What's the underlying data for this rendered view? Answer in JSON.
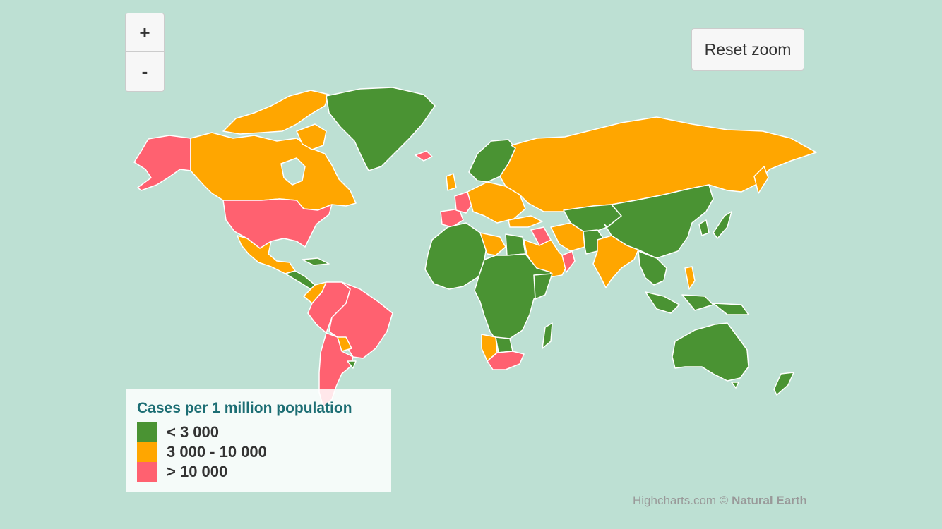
{
  "zoom": {
    "in_label": "+",
    "out_label": "-"
  },
  "reset_zoom_label": "Reset zoom",
  "legend": {
    "title": "Cases per 1 million population",
    "items": [
      {
        "label": "< 3 000",
        "color": "#4a9333"
      },
      {
        "label": "3 000 - 10 000",
        "color": "#ffa600"
      },
      {
        "label": "> 10 000",
        "color": "#ff6170"
      }
    ]
  },
  "credits": {
    "prefix": "Highcharts.com © ",
    "source": "Natural Earth"
  },
  "colors": {
    "background": "#bde0d3",
    "border": "#ffffff"
  },
  "regions": [
    {
      "name": "Alaska",
      "class": "> 10 000"
    },
    {
      "name": "Canada",
      "class": "3 000 - 10 000"
    },
    {
      "name": "Greenland",
      "class": "< 3 000"
    },
    {
      "name": "United States",
      "class": "> 10 000"
    },
    {
      "name": "Mexico",
      "class": "3 000 - 10 000"
    },
    {
      "name": "Brazil",
      "class": "> 10 000"
    },
    {
      "name": "Argentina",
      "class": "> 10 000"
    },
    {
      "name": "Russia",
      "class": "3 000 - 10 000"
    },
    {
      "name": "China",
      "class": "< 3 000"
    },
    {
      "name": "India",
      "class": "3 000 - 10 000"
    },
    {
      "name": "Australia",
      "class": "< 3 000"
    },
    {
      "name": "Africa",
      "class": "< 3 000"
    },
    {
      "name": "South Africa",
      "class": "> 10 000"
    },
    {
      "name": "France",
      "class": "> 10 000"
    },
    {
      "name": "Spain",
      "class": "> 10 000"
    },
    {
      "name": "Saudi Arabia",
      "class": "3 000 - 10 000"
    },
    {
      "name": "Scandinavia",
      "class": "< 3 000"
    }
  ]
}
